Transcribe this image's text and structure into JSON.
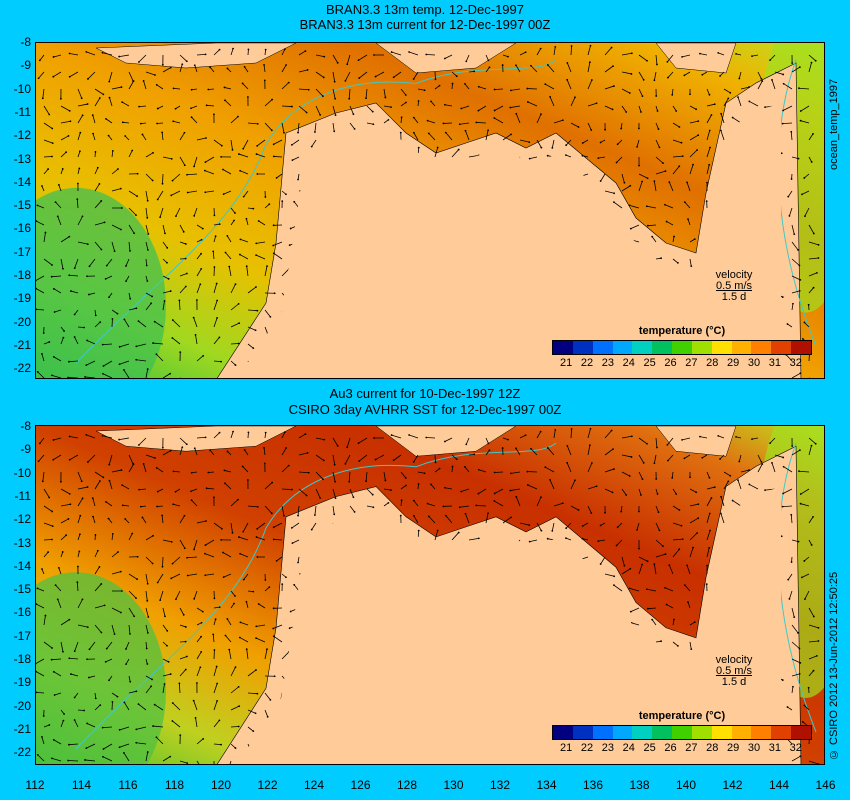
{
  "top_panel": {
    "title_line1": "BRAN3.3 13m temp. 12-Dec-1997",
    "title_line2": "BRAN3.3 13m current for 12-Dec-1997 00Z",
    "side_label": "ocean_temp_1997",
    "velocity_label": "velocity",
    "velocity_speed": "0.5 m/s",
    "velocity_time": "1.5 d"
  },
  "bottom_panel": {
    "title_line1": "Au3 current for 10-Dec-1997 12Z",
    "title_line2": "CSIRO 3day AVHRR SST for 12-Dec-1997 00Z",
    "side_label": "© CSIRO 2012  13-Jun-2012 12:50:25",
    "velocity_label": "velocity",
    "velocity_speed": "0.5 m/s",
    "velocity_time": "1.5 d"
  },
  "legend": {
    "title": "temperature (°C)",
    "ticks": [
      "21",
      "22",
      "23",
      "24",
      "25",
      "26",
      "27",
      "28",
      "29",
      "30",
      "31",
      "32"
    ],
    "colors": [
      "#000080",
      "#0030c0",
      "#0070ff",
      "#00a8ff",
      "#00d0c0",
      "#00c060",
      "#40d000",
      "#a0e000",
      "#ffe000",
      "#ffb000",
      "#ff8000",
      "#e04000",
      "#b01000"
    ]
  },
  "y_ticks": [
    "-8",
    "-9",
    "-10",
    "-11",
    "-12",
    "-13",
    "-14",
    "-15",
    "-16",
    "-17",
    "-18",
    "-19",
    "-20",
    "-21",
    "-22"
  ],
  "x_ticks": [
    "112",
    "114",
    "116",
    "118",
    "120",
    "122",
    "124",
    "126",
    "128",
    "130",
    "132",
    "134",
    "136",
    "138",
    "140",
    "142",
    "144",
    "146"
  ],
  "colors": {
    "background": "#00ccff",
    "land": "#ffcc99",
    "coastline": "#40c8c8"
  }
}
